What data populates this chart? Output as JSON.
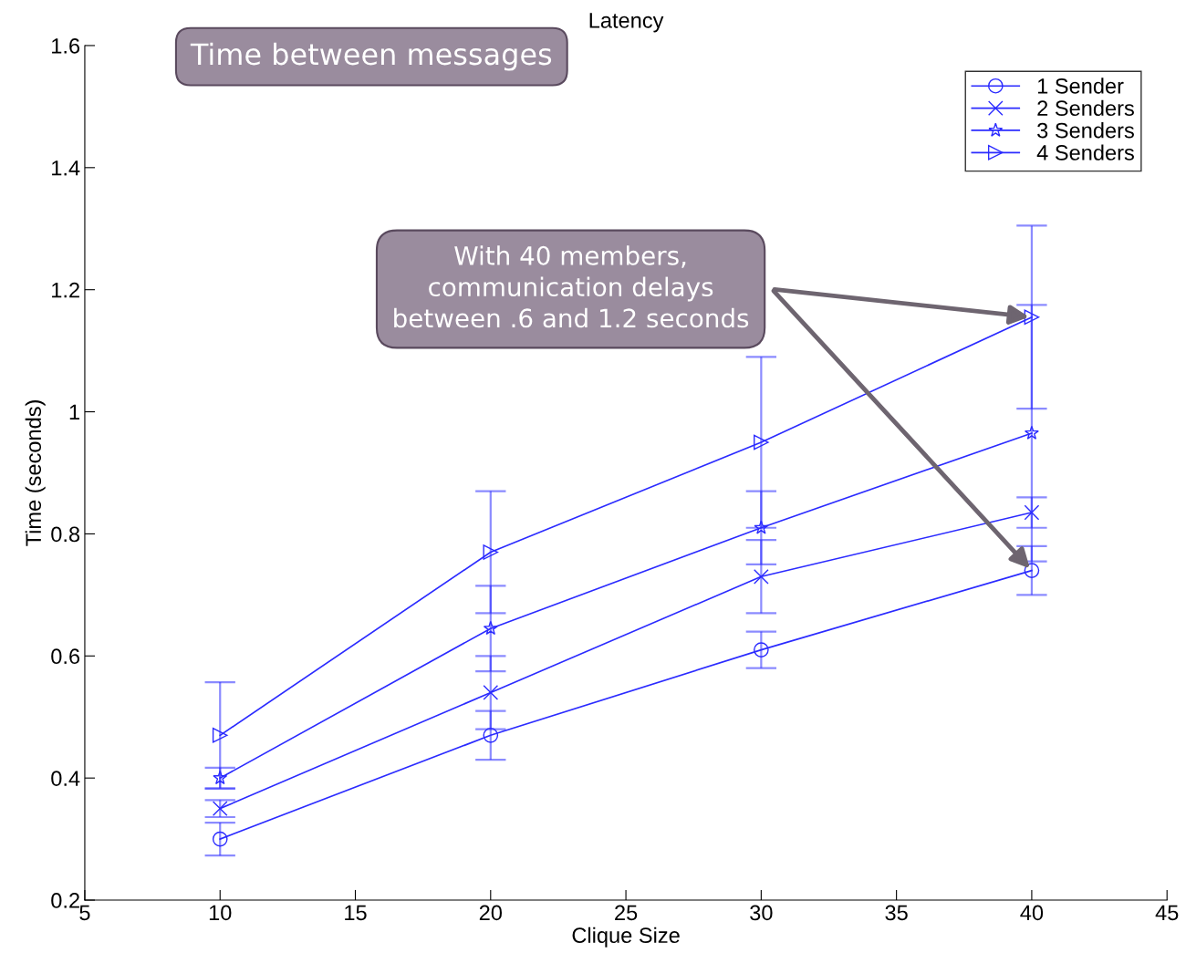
{
  "chart_data": {
    "type": "line",
    "title": "Latency",
    "xlabel": "Clique Size",
    "ylabel": "Time (seconds)",
    "x": [
      10,
      20,
      30,
      40
    ],
    "series": [
      {
        "name": "1 Sender",
        "color": "#2b2bff",
        "marker": "circle",
        "values": [
          0.3,
          0.47,
          0.61,
          0.74
        ],
        "errors": [
          0.027,
          0.04,
          0.03,
          0.04
        ]
      },
      {
        "name": "2 Senders",
        "color": "#2b2bff",
        "marker": "cross",
        "values": [
          0.35,
          0.54,
          0.73,
          0.835
        ],
        "errors": [
          0.014,
          0.06,
          0.06,
          0.025
        ]
      },
      {
        "name": "3 Senders",
        "color": "#2b2bff",
        "marker": "star",
        "values": [
          0.4,
          0.645,
          0.81,
          0.965
        ],
        "errors": [
          0.017,
          0.07,
          0.06,
          0.21
        ]
      },
      {
        "name": "4 Senders",
        "color": "#2b2bff",
        "marker": "triangle",
        "values": [
          0.47,
          0.77,
          0.95,
          1.155
        ],
        "errors": [
          0.087,
          0.1,
          0.14,
          0.15
        ]
      }
    ],
    "xlim": [
      5,
      45
    ],
    "xticks": [
      5,
      10,
      15,
      20,
      25,
      30,
      35,
      40,
      45
    ],
    "ylim": [
      0.2,
      1.6
    ],
    "yticks": [
      0.2,
      0.4,
      0.6,
      0.8,
      {
        "value": 1,
        "label": "1"
      },
      1.2,
      1.4,
      1.6
    ],
    "grid": false,
    "legend": "top right",
    "line_style": "solid",
    "annotations": [
      "Time between messages",
      {
        "text": "With 40 members,\ncommunication delays\nbetween .6 and 1.2 seconds",
        "x": 40,
        "y": 1.155
      }
    ]
  }
}
